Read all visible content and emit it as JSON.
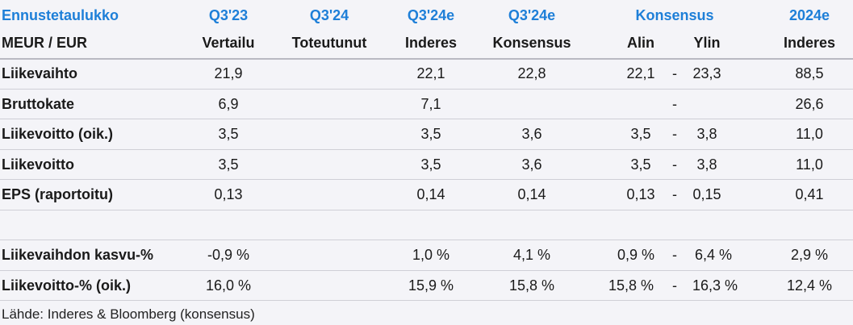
{
  "header_top": {
    "title": "Ennustetaulukko",
    "q3_23": "Q3'23",
    "q3_24": "Q3'24",
    "q3_24e_inderes": "Q3'24e",
    "q3_24e_consensus": "Q3'24e",
    "consensus": "Konsensus",
    "y2024e": "2024e"
  },
  "header_sub": {
    "unit": "MEUR / EUR",
    "q3_23": "Vertailu",
    "q3_24": "Toteutunut",
    "q3_24e_inderes": "Inderes",
    "q3_24e_consensus": "Konsensus",
    "low": "Alin",
    "high": "Ylin",
    "y2024e": "Inderes"
  },
  "rows": [
    {
      "label": "Liikevaihto",
      "q3_23": "21,9",
      "q3_24": "",
      "inderes": "22,1",
      "consensus": "22,8",
      "low": "22,1",
      "dash": "-",
      "high": "23,3",
      "y2024e": "88,5"
    },
    {
      "label": "Bruttokate",
      "q3_23": "6,9",
      "q3_24": "",
      "inderes": "7,1",
      "consensus": "",
      "low": "",
      "dash": "-",
      "high": "",
      "y2024e": "26,6"
    },
    {
      "label": "Liikevoitto (oik.)",
      "q3_23": "3,5",
      "q3_24": "",
      "inderes": "3,5",
      "consensus": "3,6",
      "low": "3,5",
      "dash": "-",
      "high": "3,8",
      "y2024e": "11,0"
    },
    {
      "label": "Liikevoitto",
      "q3_23": "3,5",
      "q3_24": "",
      "inderes": "3,5",
      "consensus": "3,6",
      "low": "3,5",
      "dash": "-",
      "high": "3,8",
      "y2024e": "11,0"
    },
    {
      "label": "EPS (raportoitu)",
      "q3_23": "0,13",
      "q3_24": "",
      "inderes": "0,14",
      "consensus": "0,14",
      "low": "0,13",
      "dash": "-",
      "high": "0,15",
      "y2024e": "0,41"
    },
    {
      "label": "Liikevaihdon kasvu-%",
      "q3_23": "-0,9 %",
      "q3_24": "",
      "inderes": "1,0 %",
      "consensus": "4,1 %",
      "low": "0,9 %",
      "dash": "-",
      "high": "6,4 %",
      "y2024e": "2,9 %"
    },
    {
      "label": "Liikevoitto-% (oik.)",
      "q3_23": "16,0 %",
      "q3_24": "",
      "inderes": "15,9 %",
      "consensus": "15,8 %",
      "low": "15,8 %",
      "dash": "-",
      "high": "16,3 %",
      "y2024e": "12,4 %"
    }
  ],
  "source": "Lähde: Inderes & Bloomberg  (konsensus)",
  "colors": {
    "header_accent": "#1e7fd8",
    "background": "#f4f4f8"
  }
}
